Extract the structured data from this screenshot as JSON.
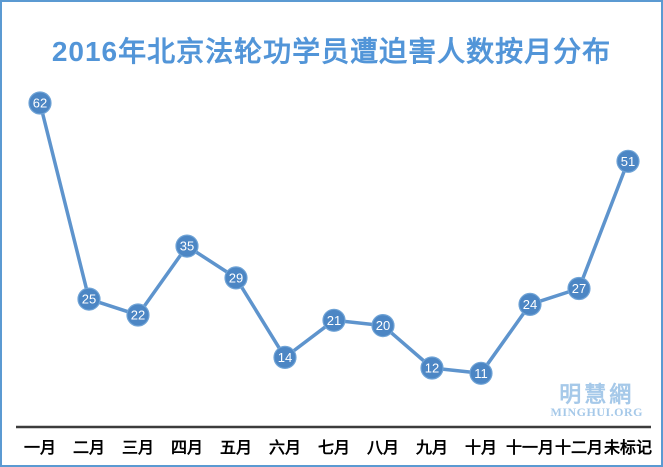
{
  "title": "2016年北京法轮功学员遭迫害人数按月分布",
  "watermark": {
    "cn": "明慧網",
    "en": "MINGHUI.ORG"
  },
  "colors": {
    "title": "#5295d8",
    "border": "#5b9ad2",
    "line": "#5e94cd",
    "marker_fill": "#4c86c4",
    "marker_stroke": "#6fa3d6",
    "marker_text": "#ffffff",
    "axis_line": "#3c3c3c",
    "axis_label": "#000000",
    "watermark": "#a6c9e9"
  },
  "chart_data": {
    "type": "line",
    "title": "2016年北京法轮功学员遭迫害人数按月分布",
    "categories": [
      "一月",
      "二月",
      "三月",
      "四月",
      "五月",
      "六月",
      "七月",
      "八月",
      "九月",
      "十月",
      "十一月",
      "十二月",
      "未标记"
    ],
    "values": [
      62,
      25,
      22,
      35,
      29,
      14,
      21,
      20,
      12,
      11,
      24,
      27,
      51
    ],
    "xlabel": "",
    "ylabel": "",
    "ylim": [
      0,
      70
    ],
    "grid": false,
    "legend": false,
    "point_labels": true,
    "marker": "circle"
  }
}
